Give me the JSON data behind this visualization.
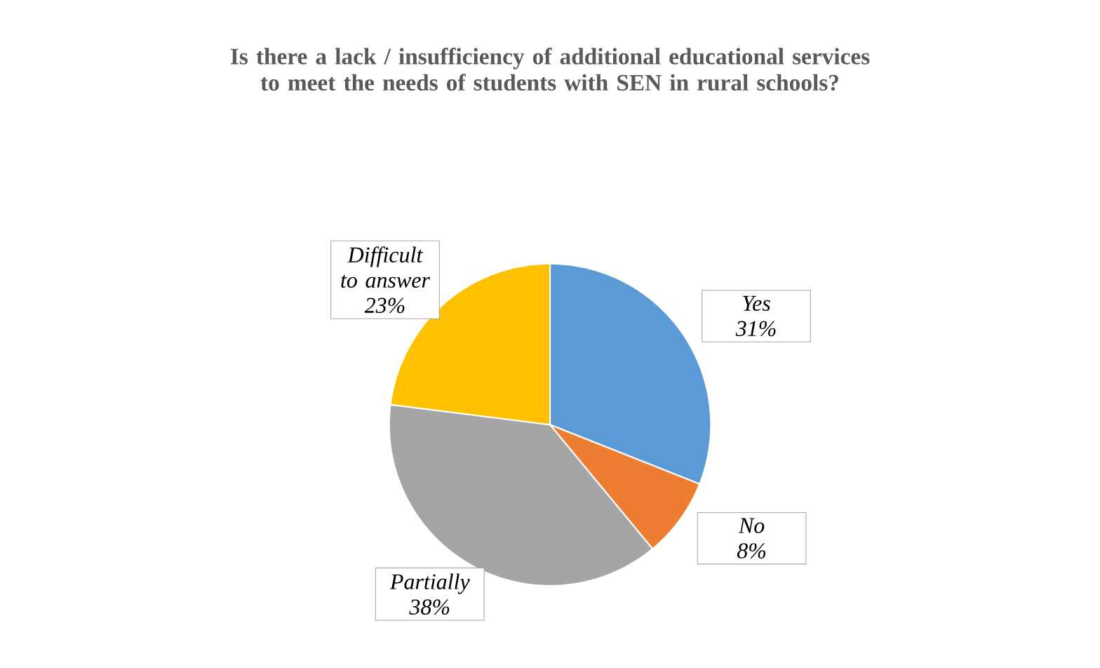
{
  "chart_data": {
    "type": "pie",
    "title": "Is there a lack / insufficiency of additional educational services to meet the needs of students with SEN in rural schools?",
    "categories": [
      "Yes",
      "No",
      "Partially",
      "Difficult to answer"
    ],
    "values": [
      31,
      8,
      38,
      23
    ],
    "value_labels": [
      "31%",
      "8%",
      "38%",
      "23%"
    ],
    "colors": [
      "#5b9bd5",
      "#ed7d31",
      "#a5a5a5",
      "#ffc000"
    ]
  }
}
